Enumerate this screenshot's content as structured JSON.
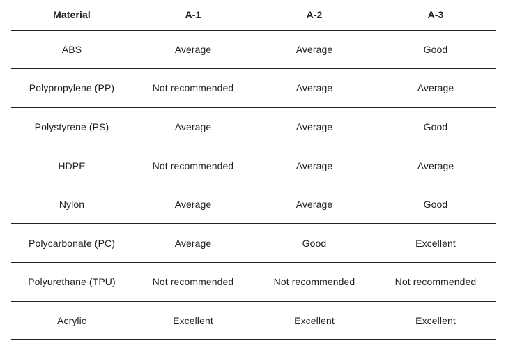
{
  "table": {
    "columns": [
      "Material",
      "A-1",
      "A-2",
      "A-3"
    ],
    "rows": [
      {
        "material": "ABS",
        "values": [
          "Average",
          "Average",
          "Good"
        ]
      },
      {
        "material": "Polypropylene (PP)",
        "values": [
          "Not recommended",
          "Average",
          "Average"
        ]
      },
      {
        "material": "Polystyrene (PS)",
        "values": [
          "Average",
          "Average",
          "Good"
        ]
      },
      {
        "material": "HDPE",
        "values": [
          "Not recommended",
          "Average",
          "Average"
        ]
      },
      {
        "material": "Nylon",
        "values": [
          "Average",
          "Average",
          "Good"
        ]
      },
      {
        "material": "Polycarbonate (PC)",
        "values": [
          "Average",
          "Good",
          "Excellent"
        ]
      },
      {
        "material": "Polyurethane (TPU)",
        "values": [
          "Not recommended",
          "Not recommended",
          "Not recommended"
        ]
      },
      {
        "material": "Acrylic",
        "values": [
          "Excellent",
          "Excellent",
          "Excellent"
        ]
      }
    ],
    "colors": {
      "text": "#1f1f1f",
      "border": "#222222",
      "background": "#ffffff"
    }
  }
}
